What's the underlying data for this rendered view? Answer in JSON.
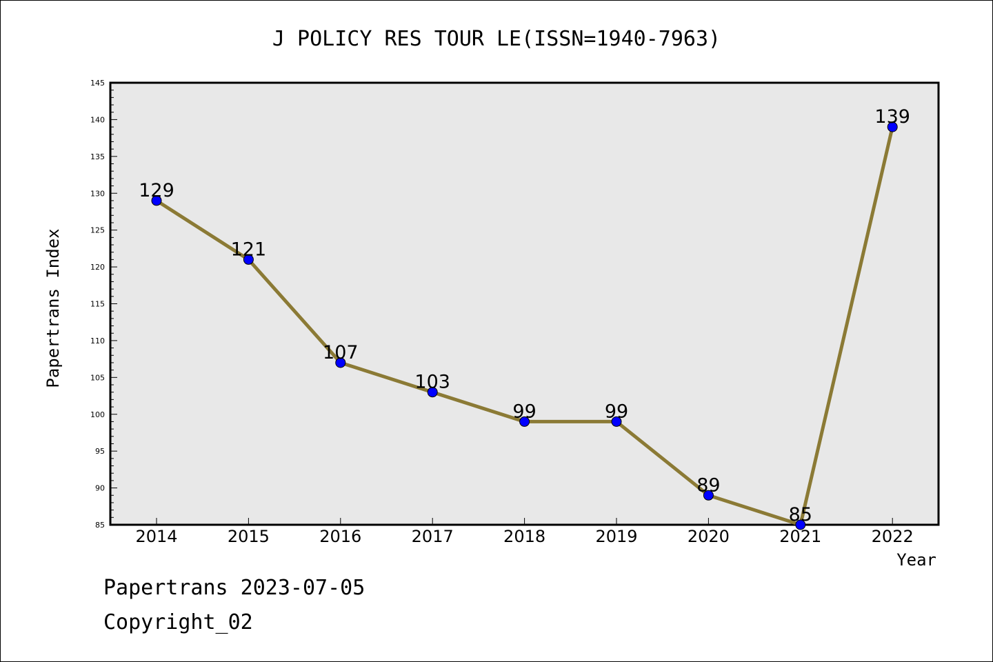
{
  "chart_data": {
    "type": "line",
    "title": "J POLICY RES TOUR LE(ISSN=1940-7963)",
    "xlabel": "Year",
    "ylabel": "Papertrans Index",
    "categories": [
      "2014",
      "2015",
      "2016",
      "2017",
      "2018",
      "2019",
      "2020",
      "2021",
      "2022"
    ],
    "series": [
      {
        "values": [
          129,
          121,
          107,
          103,
          99,
          99,
          89,
          85,
          139
        ]
      }
    ],
    "ylim": [
      85,
      145
    ],
    "yticks": [
      85,
      90,
      95,
      100,
      105,
      110,
      115,
      120,
      125,
      130,
      135,
      140,
      145
    ],
    "grid": false,
    "line_color": "#8b7a35",
    "marker_color": "#0000ff",
    "plot_background": "#e8e8e8"
  },
  "footer": {
    "date_line": "Papertrans 2023-07-05",
    "copyright_line": "Copyright_02"
  }
}
